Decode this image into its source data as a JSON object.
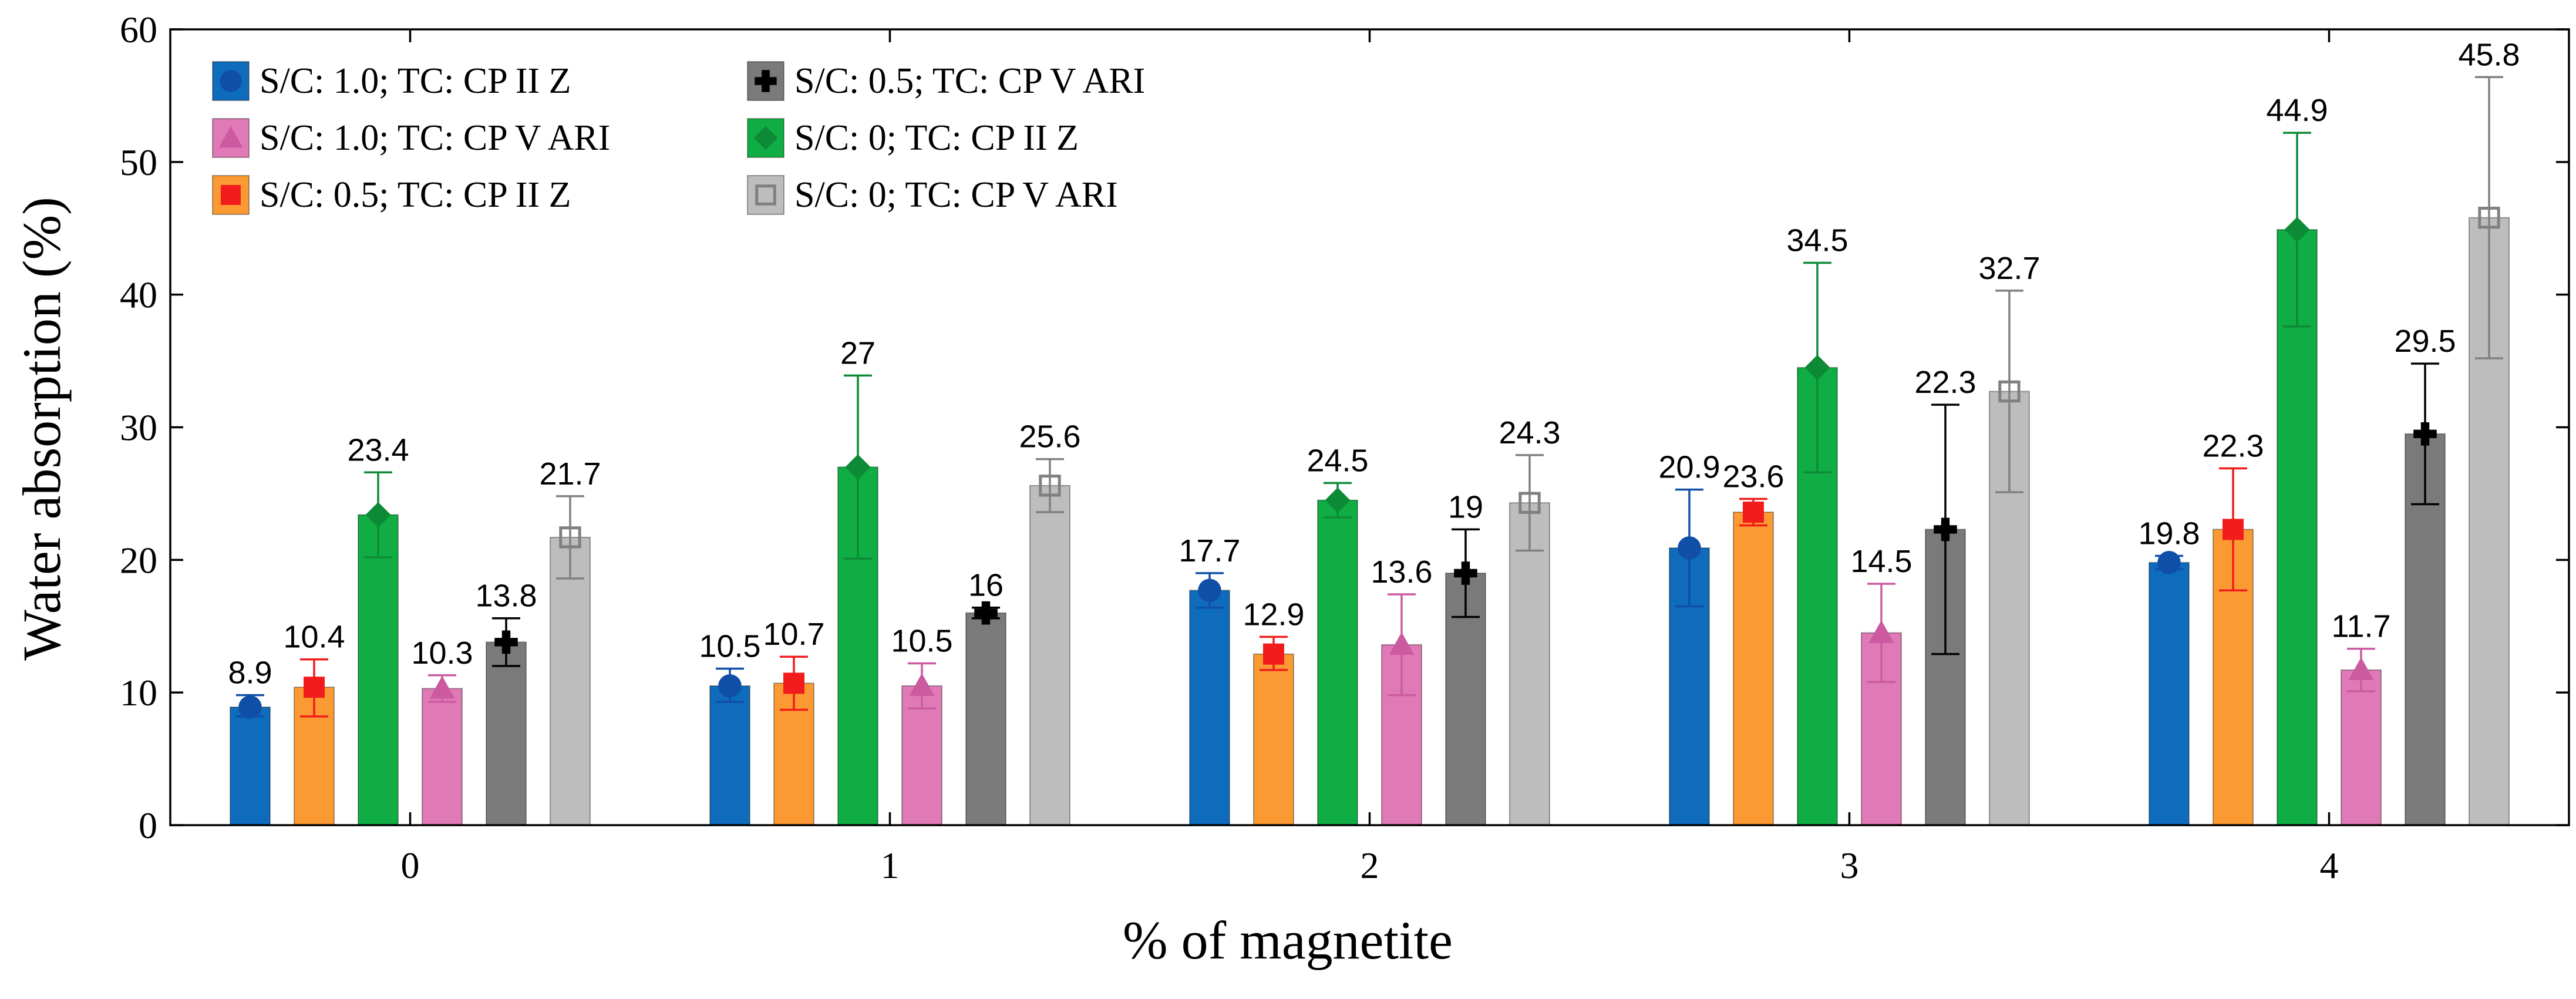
{
  "chart_data": {
    "type": "bar",
    "title": "",
    "xlabel": "% of magnetite",
    "ylabel": "Water absorption (%)",
    "ylim": [
      0,
      60
    ],
    "yticks": [
      "0",
      "10",
      "20",
      "30",
      "40",
      "50",
      "60"
    ],
    "categories": [
      "0",
      "1",
      "2",
      "3",
      "4"
    ],
    "legend_position": "top-left",
    "series": [
      {
        "name": "S/C: 1.0; TC: CP II Z",
        "color": "#0f6cbd",
        "marker": "circle",
        "marker_color": "#0f4fa8",
        "values": [
          8.9,
          10.5,
          17.7,
          20.9,
          19.8
        ],
        "labels": [
          "8.9",
          "10.5",
          "17.7",
          "20.9",
          "19.8"
        ],
        "err_low": [
          8.2,
          9.3,
          16.4,
          16.5,
          19.3
        ],
        "err_high": [
          9.8,
          11.8,
          19.0,
          25.3,
          20.3
        ]
      },
      {
        "name": "S/C: 0.5; TC: CP II Z",
        "color": "#fb9a33",
        "marker": "square",
        "marker_color": "#f21c1c",
        "values": [
          10.4,
          10.7,
          12.9,
          23.6,
          22.3
        ],
        "labels": [
          "10.4",
          "10.7",
          "12.9",
          "23.6",
          "22.3"
        ],
        "err_low": [
          8.2,
          8.7,
          11.7,
          22.6,
          17.7
        ],
        "err_high": [
          12.5,
          12.7,
          14.2,
          24.6,
          26.9
        ]
      },
      {
        "name": "S/C: 0; TC: CP II Z",
        "color": "#10ad44",
        "marker": "diamond",
        "marker_color": "#0d8a36",
        "values": [
          23.4,
          27.0,
          24.5,
          34.5,
          44.9
        ],
        "labels": [
          "23.4",
          "27",
          "24.5",
          "34.5",
          "44.9"
        ],
        "err_low": [
          20.2,
          20.1,
          23.2,
          26.6,
          37.6
        ],
        "err_high": [
          26.6,
          33.9,
          25.8,
          42.4,
          52.2
        ]
      },
      {
        "name": "S/C: 1.0; TC: CP V ARI",
        "color": "#e07ab6",
        "marker": "triangle",
        "marker_color": "#cc5aa0",
        "values": [
          10.3,
          10.5,
          13.6,
          14.5,
          11.7
        ],
        "labels": [
          "10.3",
          "10.5",
          "13.6",
          "14.5",
          "11.7"
        ],
        "err_low": [
          9.3,
          8.8,
          9.8,
          10.8,
          10.1
        ],
        "err_high": [
          11.3,
          12.2,
          17.4,
          18.2,
          13.3
        ]
      },
      {
        "name": "S/C: 0.5; TC: CP V ARI",
        "color": "#7a7a7a",
        "marker": "cross",
        "marker_color": "#000000",
        "values": [
          13.8,
          16.0,
          19.0,
          22.3,
          29.5
        ],
        "labels": [
          "13.8",
          "16",
          "19",
          "22.3",
          "29.5"
        ],
        "err_low": [
          12.0,
          15.6,
          15.7,
          12.9,
          24.2
        ],
        "err_high": [
          15.6,
          16.4,
          22.3,
          31.7,
          34.8
        ]
      },
      {
        "name": "S/C: 0; TC: CP V ARI",
        "color": "#bdbdbd",
        "marker": "open-square",
        "marker_color": "#808080",
        "values": [
          21.7,
          25.6,
          24.3,
          32.7,
          45.8
        ],
        "labels": [
          "21.7",
          "25.6",
          "24.3",
          "32.7",
          "45.8"
        ],
        "err_low": [
          18.6,
          23.6,
          20.7,
          25.1,
          35.2
        ],
        "err_high": [
          24.8,
          27.6,
          27.9,
          40.3,
          56.4
        ]
      }
    ],
    "legend_order": [
      0,
      3,
      1,
      4,
      2,
      5
    ]
  }
}
